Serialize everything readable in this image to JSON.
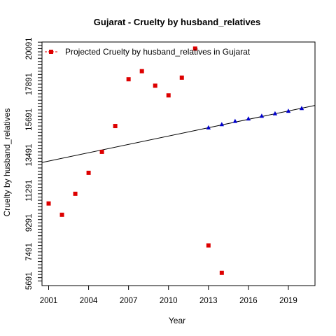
{
  "chart_data": {
    "type": "scatter",
    "title": "Gujarat  -  Cruelty by husband_relatives",
    "xlabel": "Year",
    "ylabel": "Cruelty by husband_relatives",
    "xlim": [
      2000.5,
      2021
    ],
    "ylim": [
      5400,
      20500
    ],
    "x_ticks": [
      2001,
      2004,
      2007,
      2010,
      2013,
      2016,
      2019
    ],
    "y_ticks": [
      5691,
      7491,
      9291,
      11291,
      13491,
      15691,
      17891,
      20091
    ],
    "y_minor_step": 200,
    "legend": {
      "position": "top-left",
      "entries": [
        "Projected  Cruelty by husband_relatives  in  Gujarat"
      ]
    },
    "series": [
      {
        "type": "scatter",
        "marker": "square",
        "color": "#dd0000",
        "x": [
          2001,
          2002,
          2003,
          2004,
          2005,
          2006,
          2007,
          2008,
          2009,
          2010,
          2011,
          2012,
          2013,
          2014
        ],
        "values": [
          10491,
          9791,
          11091,
          12391,
          13691,
          15291,
          18191,
          18691,
          17791,
          17191,
          18291,
          20091,
          7891,
          6191
        ]
      },
      {
        "type": "scatter",
        "marker": "triangle",
        "color": "#0000cc",
        "x": [
          2013,
          2014,
          2015,
          2016,
          2017,
          2018,
          2019,
          2020
        ],
        "values": [
          15191,
          15391,
          15591,
          15741,
          15911,
          16061,
          16221,
          16391
        ]
      }
    ],
    "trend_line": {
      "color": "#000000",
      "x": [
        2000.5,
        2021
      ],
      "values": [
        13031,
        16569
      ]
    }
  }
}
